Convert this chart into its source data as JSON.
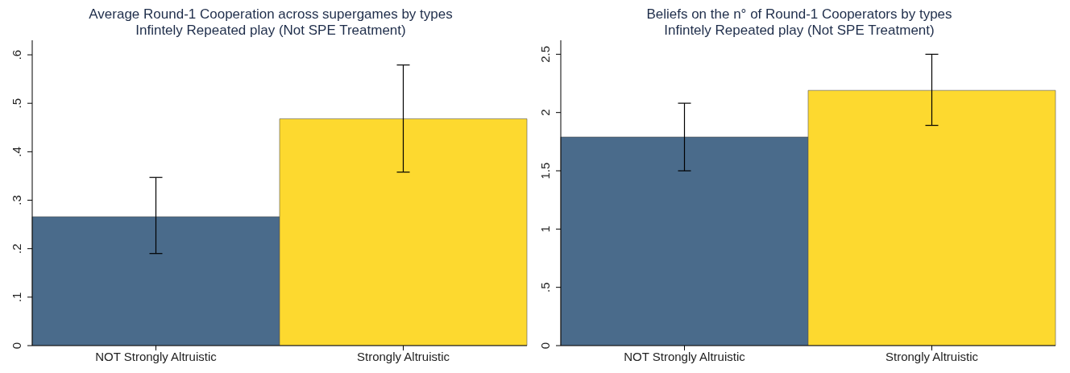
{
  "chart_data": [
    {
      "type": "bar",
      "title": "Average Round-1 Cooperation across supergames by types",
      "subtitle": "Infintely Repeated play (Not SPE Treatment)",
      "categories": [
        "NOT Strongly Altruistic",
        "Strongly Altruistic"
      ],
      "values": [
        0.266,
        0.468
      ],
      "colors": [
        "#4a6b8b",
        "#fdd92f"
      ],
      "errors": [
        [
          0.19,
          0.347
        ],
        [
          0.358,
          0.579
        ]
      ],
      "ylim": [
        0,
        0.63
      ],
      "yticks": [
        0,
        {
          "value": 0.1,
          "label": ".1"
        },
        {
          "value": 0.2,
          "label": ".2"
        },
        {
          "value": 0.3,
          "label": ".3"
        },
        {
          "value": 0.4,
          "label": ".4"
        },
        {
          "value": 0.5,
          "label": ".5"
        },
        {
          "value": 0.6,
          "label": ".6"
        }
      ]
    },
    {
      "type": "bar",
      "title": "Beliefs on the n° of Round-1 Cooperators by types",
      "subtitle": "Infintely Repeated play (Not SPE Treatment)",
      "categories": [
        "NOT Strongly Altruistic",
        "Strongly Altruistic"
      ],
      "values": [
        1.79,
        2.19
      ],
      "colors": [
        "#4a6b8b",
        "#fdd92f"
      ],
      "errors": [
        [
          1.5,
          2.08
        ],
        [
          1.89,
          2.5
        ]
      ],
      "ylim": [
        0,
        2.62
      ],
      "yticks": [
        0,
        {
          "value": 0.5,
          "label": ".5"
        },
        1,
        1.5,
        2,
        2.5
      ]
    }
  ]
}
